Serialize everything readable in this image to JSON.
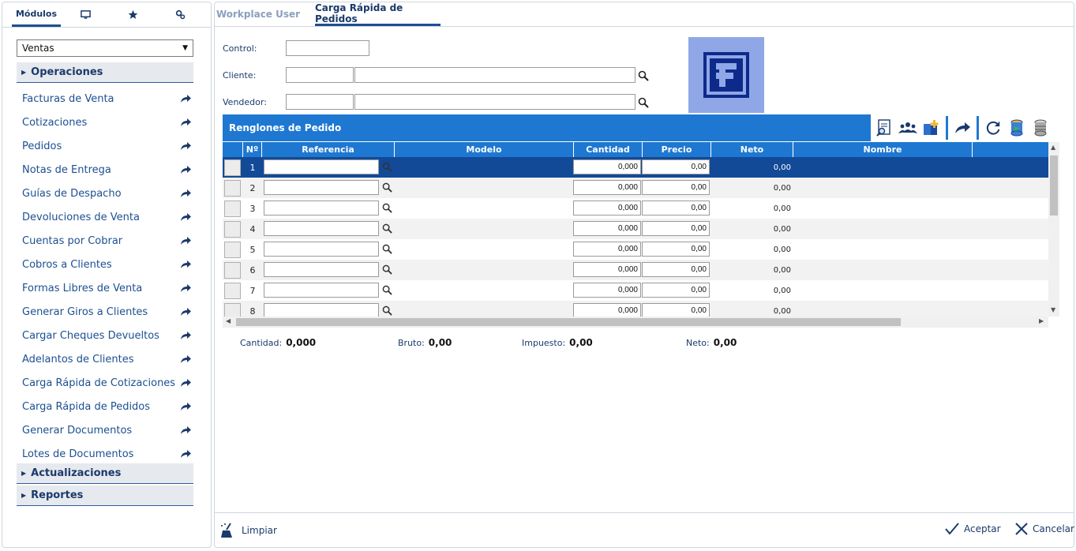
{
  "left_tabs": [
    {
      "label": "Módulos",
      "icon": "modules"
    },
    {
      "icon": "monitor-icon"
    },
    {
      "icon": "star-icon"
    },
    {
      "icon": "settings-icon"
    }
  ],
  "module_select": {
    "value": "Ventas"
  },
  "sections": {
    "operaciones": "Operaciones",
    "actualizaciones": "Actualizaciones",
    "reportes": "Reportes"
  },
  "menu_items": [
    "Facturas de Venta",
    "Cotizaciones",
    "Pedidos",
    "Notas de Entrega",
    "Guías de Despacho",
    "Devoluciones de Venta",
    "Cuentas por Cobrar",
    "Cobros a Clientes",
    "Formas Libres de Venta",
    "Generar Giros a Clientes",
    "Cargar Cheques Devueltos",
    "Adelantos de Clientes",
    "Carga Rápida de Cotizaciones",
    "Carga Rápida de Pedidos",
    "Generar Documentos",
    "Lotes de Documentos"
  ],
  "right_tabs": [
    "Workplace User",
    "Carga Rápida de Pedidos"
  ],
  "form": {
    "control_label": "Control:",
    "cliente_label": "Cliente:",
    "vendedor_label": "Vendedor:",
    "control_value": "",
    "cliente_code": "",
    "cliente_name": "",
    "vendedor_code": "",
    "vendedor_name": ""
  },
  "grid": {
    "title": "Renglones de Pedido",
    "columns": [
      "Nº",
      "Referencia",
      "Modelo",
      "Cantidad",
      "Precio",
      "Neto",
      "Nombre"
    ],
    "rows": [
      {
        "n": "1",
        "cantidad": "0,000",
        "precio": "0,00",
        "neto": "0,00",
        "selected": true
      },
      {
        "n": "2",
        "cantidad": "0,000",
        "precio": "0,00",
        "neto": "0,00"
      },
      {
        "n": "3",
        "cantidad": "0,000",
        "precio": "0,00",
        "neto": "0,00"
      },
      {
        "n": "4",
        "cantidad": "0,000",
        "precio": "0,00",
        "neto": "0,00"
      },
      {
        "n": "5",
        "cantidad": "0,000",
        "precio": "0,00",
        "neto": "0,00"
      },
      {
        "n": "6",
        "cantidad": "0,000",
        "precio": "0,00",
        "neto": "0,00"
      },
      {
        "n": "7",
        "cantidad": "0,000",
        "precio": "0,00",
        "neto": "0,00"
      },
      {
        "n": "8",
        "cantidad": "0,000",
        "precio": "0,00",
        "neto": "0,00"
      }
    ]
  },
  "totals": {
    "cantidad_label": "Cantidad:",
    "cantidad": "0,000",
    "bruto_label": "Bruto:",
    "bruto": "0,00",
    "impuesto_label": "Impuesto:",
    "impuesto": "0,00",
    "neto_label": "Neto:",
    "neto": "0,00"
  },
  "footer": {
    "clear": "Limpiar",
    "accept": "Aceptar",
    "cancel": "Cancelar"
  },
  "colors": {
    "accent": "#1e78d2",
    "selected_row": "#124a97",
    "text": "#1b3a6b"
  }
}
